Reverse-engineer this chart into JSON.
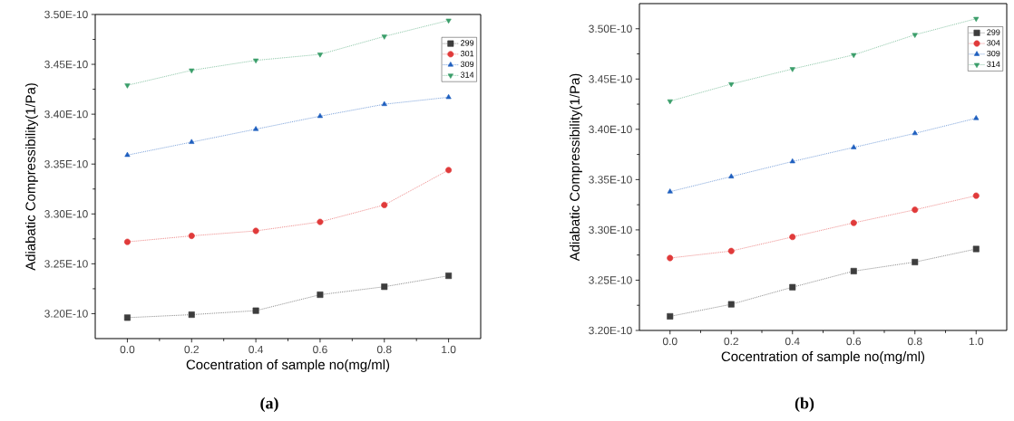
{
  "chart_data": [
    {
      "type": "line",
      "xlabel": "Cocentration of sample no(mg/ml)",
      "ylabel": "Adiabatic Compressibility(1/Pa)",
      "annotations": [
        "(a)"
      ],
      "x": [
        0.0,
        0.2,
        0.4,
        0.6,
        0.8,
        1.0
      ],
      "xlim": [
        -0.1,
        1.1
      ],
      "ylim": [
        3.175e-10,
        3.5e-10
      ],
      "xticks": [
        {
          "value": 0.0,
          "label": "0.0"
        },
        {
          "value": 0.2,
          "label": "0.2"
        },
        {
          "value": 0.4,
          "label": "0.4"
        },
        {
          "value": 0.6,
          "label": "0.6"
        },
        {
          "value": 0.8,
          "label": "0.8"
        },
        {
          "value": 1.0,
          "label": "1.0"
        }
      ],
      "yticks": [
        {
          "value": 3.2e-10,
          "label": "3.20E-10"
        },
        {
          "value": 3.25e-10,
          "label": "3.25E-10"
        },
        {
          "value": 3.3e-10,
          "label": "3.30E-10"
        },
        {
          "value": 3.35e-10,
          "label": "3.35E-10"
        },
        {
          "value": 3.4e-10,
          "label": "3.40E-10"
        },
        {
          "value": 3.45e-10,
          "label": "3.45E-10"
        },
        {
          "value": 3.5e-10,
          "label": "3.50E-10"
        }
      ],
      "legend": "top right",
      "line_style": "dotted",
      "grid": false,
      "series": [
        {
          "name": "299",
          "color": "#3d3d3d",
          "marker": "square",
          "values": [
            3.196e-10,
            3.199e-10,
            3.203e-10,
            3.219e-10,
            3.227e-10,
            3.238e-10
          ]
        },
        {
          "name": "301",
          "color": "#e03a3a",
          "marker": "circle",
          "values": [
            3.272e-10,
            3.278e-10,
            3.283e-10,
            3.292e-10,
            3.309e-10,
            3.344e-10
          ]
        },
        {
          "name": "309",
          "color": "#1f5fbf",
          "marker": "triangle",
          "values": [
            3.359e-10,
            3.372e-10,
            3.385e-10,
            3.398e-10,
            3.41e-10,
            3.417e-10
          ]
        },
        {
          "name": "314",
          "color": "#3a9e6a",
          "marker": "triangle down",
          "values": [
            3.429e-10,
            3.444e-10,
            3.454e-10,
            3.46e-10,
            3.478e-10,
            3.494e-10
          ]
        }
      ]
    },
    {
      "type": "line",
      "xlabel": "Cocentration of sample no(mg/ml)",
      "ylabel": "Adiabatic Compressibility(1/Pa)",
      "annotations": [
        "(b)"
      ],
      "x": [
        0.0,
        0.2,
        0.4,
        0.6,
        0.8,
        1.0
      ],
      "xlim": [
        -0.1,
        1.1
      ],
      "ylim": [
        3.2e-10,
        3.525e-10
      ],
      "xticks": [
        {
          "value": 0.0,
          "label": "0.0"
        },
        {
          "value": 0.2,
          "label": "0.2"
        },
        {
          "value": 0.4,
          "label": "0.4"
        },
        {
          "value": 0.6,
          "label": "0.6"
        },
        {
          "value": 0.8,
          "label": "0.8"
        },
        {
          "value": 1.0,
          "label": "1.0"
        }
      ],
      "yticks": [
        {
          "value": 3.2e-10,
          "label": "3.20E-10"
        },
        {
          "value": 3.25e-10,
          "label": "3.25E-10"
        },
        {
          "value": 3.3e-10,
          "label": "3.30E-10"
        },
        {
          "value": 3.35e-10,
          "label": "3.35E-10"
        },
        {
          "value": 3.4e-10,
          "label": "3.40E-10"
        },
        {
          "value": 3.45e-10,
          "label": "3.45E-10"
        },
        {
          "value": 3.5e-10,
          "label": "3.50E-10"
        }
      ],
      "legend": "top right",
      "line_style": "dotted",
      "grid": false,
      "series": [
        {
          "name": "299",
          "color": "#3d3d3d",
          "marker": "square",
          "values": [
            3.214e-10,
            3.226e-10,
            3.243e-10,
            3.259e-10,
            3.268e-10,
            3.281e-10
          ]
        },
        {
          "name": "304",
          "color": "#e03a3a",
          "marker": "circle",
          "values": [
            3.272e-10,
            3.279e-10,
            3.293e-10,
            3.307e-10,
            3.32e-10,
            3.334e-10
          ]
        },
        {
          "name": "309",
          "color": "#1f5fbf",
          "marker": "triangle",
          "values": [
            3.338e-10,
            3.353e-10,
            3.368e-10,
            3.382e-10,
            3.396e-10,
            3.411e-10
          ]
        },
        {
          "name": "314",
          "color": "#3a9e6a",
          "marker": "triangle down",
          "values": [
            3.428e-10,
            3.445e-10,
            3.46e-10,
            3.474e-10,
            3.494e-10,
            3.51e-10
          ]
        }
      ]
    }
  ]
}
